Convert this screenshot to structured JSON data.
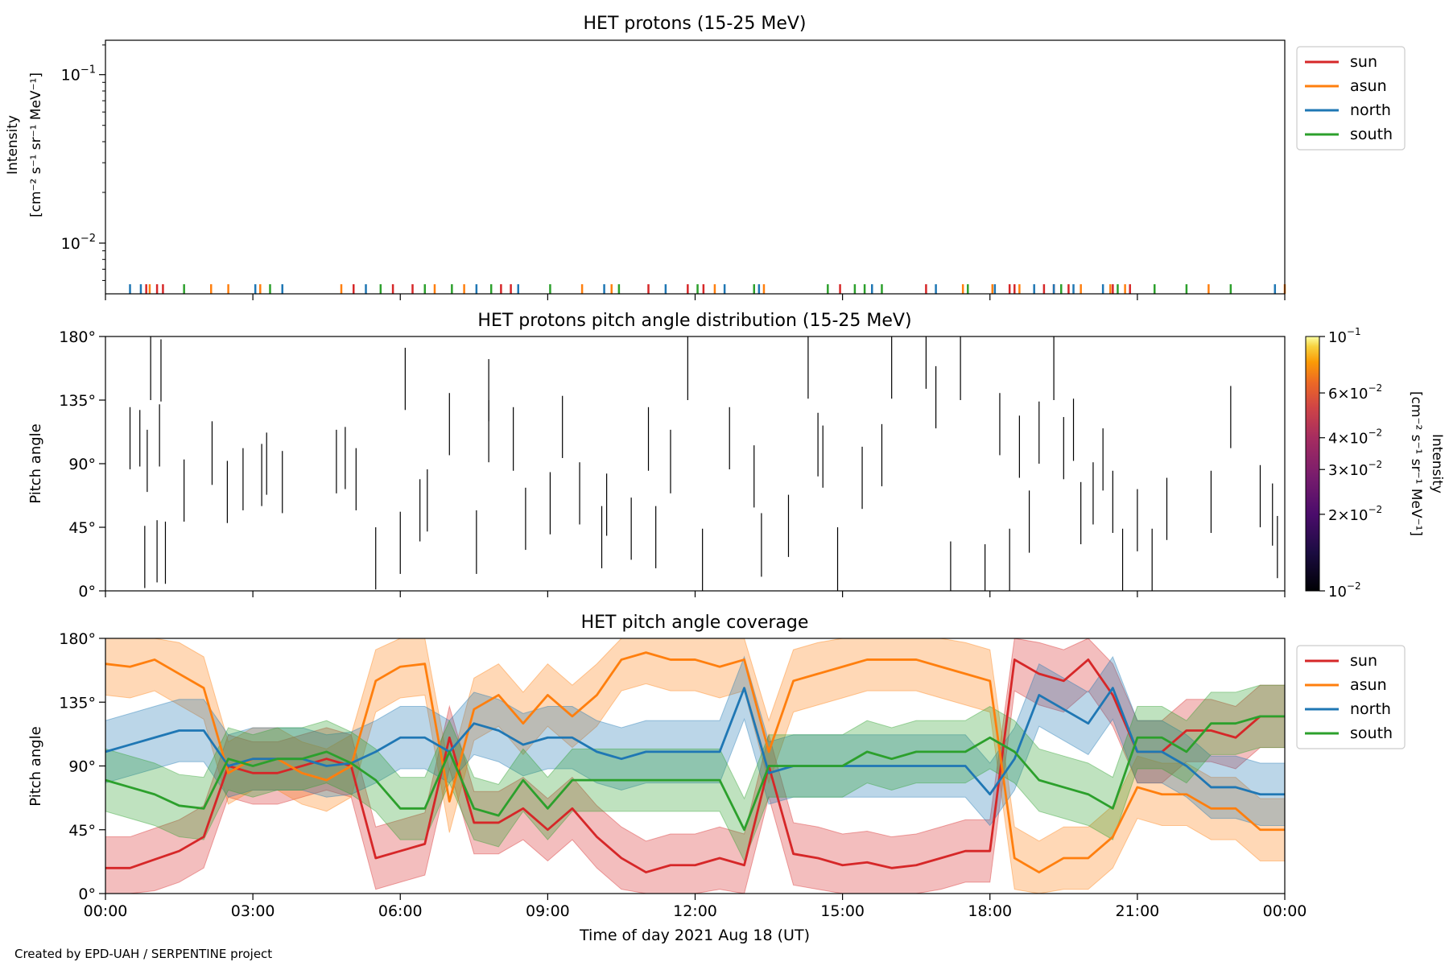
{
  "footer": {
    "credit": "Created by EPD-UAH / SERPENTINE project"
  },
  "colors": {
    "sun": "#d62728",
    "asun": "#ff7f0e",
    "north": "#1f77b4",
    "south": "#2ca02c"
  },
  "chart_data": [
    {
      "type": "line",
      "title": "HET protons (15-25 MeV)",
      "ylabel": "Intensity",
      "ylabel_unit": "[cm⁻² s⁻¹ sr⁻¹ MeV⁻¹]",
      "yscale": "log",
      "ylim": [
        0.005,
        0.16
      ],
      "yticks": [
        {
          "value": 0.1,
          "base": "10",
          "exp": "−1"
        },
        {
          "value": 0.01,
          "base": "10",
          "exp": "−2"
        }
      ],
      "x_unit": "hours",
      "xlim": [
        0,
        24
      ],
      "legend": {
        "placement": "outside-right",
        "entries": [
          "sun",
          "asun",
          "north",
          "south"
        ]
      },
      "series": [
        {
          "name": "sun",
          "color": "#d62728",
          "x": [
            0.83,
            1.05,
            1.17,
            5.05,
            5.85,
            6.25,
            8.05,
            8.25,
            11.05,
            11.85,
            12.17,
            14.95,
            16.7,
            18.4,
            18.5,
            19.1,
            19.3,
            19.6,
            20.5,
            20.85
          ],
          "values": [
            0.0057,
            0.0057,
            0.0057,
            0.0057,
            0.0057,
            0.0057,
            0.0057,
            0.0057,
            0.0057,
            0.0057,
            0.0057,
            0.0057,
            0.0057,
            0.0057,
            0.0057,
            0.0057,
            0.0057,
            0.0057,
            0.0057,
            0.0057
          ]
        },
        {
          "name": "asun",
          "color": "#ff7f0e",
          "x": [
            0.9,
            2.15,
            2.5,
            3.15,
            4.8,
            6.7,
            7.3,
            9.7,
            10.3,
            12.4,
            13.4,
            17.45,
            18.05,
            18.6,
            19.85,
            20.45,
            20.75,
            22.45,
            24.0
          ],
          "values": [
            0.0057,
            0.0057,
            0.0057,
            0.0057,
            0.0057,
            0.0057,
            0.0057,
            0.0057,
            0.0057,
            0.0057,
            0.0057,
            0.0057,
            0.0057,
            0.0057,
            0.0057,
            0.0057,
            0.0057,
            0.0057,
            0.0057
          ]
        },
        {
          "name": "north",
          "color": "#1f77b4",
          "x": [
            0.5,
            0.72,
            3.05,
            3.6,
            5.3,
            7.55,
            8.4,
            10.15,
            11.4,
            12.6,
            13.3,
            15.6,
            16.9,
            18.1,
            18.9,
            19.3,
            19.7,
            20.3,
            23.8
          ],
          "values": [
            0.0057,
            0.0057,
            0.0057,
            0.0057,
            0.0057,
            0.0057,
            0.0057,
            0.0057,
            0.0057,
            0.0057,
            0.0057,
            0.0057,
            0.0057,
            0.0057,
            0.0057,
            0.0057,
            0.0057,
            0.0057,
            0.0057
          ]
        },
        {
          "name": "south",
          "color": "#2ca02c",
          "x": [
            1.6,
            3.35,
            5.6,
            6.5,
            7.05,
            7.85,
            9.05,
            10.45,
            12.05,
            13.2,
            14.7,
            15.25,
            15.45,
            15.8,
            17.55,
            19.45,
            20.6,
            21.35,
            22.0,
            22.9
          ],
          "values": [
            0.0057,
            0.0057,
            0.0057,
            0.0057,
            0.0057,
            0.0057,
            0.0057,
            0.0057,
            0.0057,
            0.0057,
            0.0057,
            0.0057,
            0.0057,
            0.0057,
            0.0057,
            0.0057,
            0.0057,
            0.0057,
            0.0057,
            0.0057
          ]
        }
      ]
    },
    {
      "type": "heatmap",
      "title": "HET protons pitch angle distribution (15-25 MeV)",
      "ylabel": "Pitch angle",
      "ylim": [
        0,
        180
      ],
      "yticks": [
        "0°",
        "45°",
        "90°",
        "135°",
        "180°"
      ],
      "xlim": [
        0,
        24
      ],
      "colorbar": {
        "label": "Intensity",
        "unit": "[cm⁻² s⁻¹ sr⁻¹ MeV⁻¹]",
        "scale": "log",
        "range": [
          0.01,
          0.1
        ],
        "colormap": "inferno",
        "ticks": [
          {
            "value": 0.1,
            "label": "10",
            "exp": "−1"
          },
          {
            "value": 0.06,
            "label": "6×10",
            "exp": "−2"
          },
          {
            "value": 0.04,
            "label": "4×10",
            "exp": "−2"
          },
          {
            "value": 0.03,
            "label": "3×10",
            "exp": "−2"
          },
          {
            "value": 0.02,
            "label": "2×10",
            "exp": "−2"
          },
          {
            "value": 0.01,
            "label": "10",
            "exp": "−2"
          }
        ]
      },
      "segments": [
        {
          "x": 0.5,
          "y0": 86,
          "y1": 130
        },
        {
          "x": 0.7,
          "y0": 88,
          "y1": 128
        },
        {
          "x": 0.8,
          "y0": 2,
          "y1": 46
        },
        {
          "x": 0.85,
          "y0": 70,
          "y1": 114
        },
        {
          "x": 0.92,
          "y0": 135,
          "y1": 180
        },
        {
          "x": 1.05,
          "y0": 6,
          "y1": 50
        },
        {
          "x": 1.1,
          "y0": 88,
          "y1": 132
        },
        {
          "x": 1.13,
          "y0": 134,
          "y1": 178
        },
        {
          "x": 1.22,
          "y0": 5,
          "y1": 49
        },
        {
          "x": 1.6,
          "y0": 49,
          "y1": 93
        },
        {
          "x": 2.17,
          "y0": 75,
          "y1": 120
        },
        {
          "x": 2.48,
          "y0": 48,
          "y1": 92
        },
        {
          "x": 2.8,
          "y0": 57,
          "y1": 101
        },
        {
          "x": 3.18,
          "y0": 60,
          "y1": 104
        },
        {
          "x": 3.28,
          "y0": 68,
          "y1": 112
        },
        {
          "x": 3.6,
          "y0": 55,
          "y1": 99
        },
        {
          "x": 4.7,
          "y0": 69,
          "y1": 114
        },
        {
          "x": 4.88,
          "y0": 72,
          "y1": 116
        },
        {
          "x": 5.1,
          "y0": 57,
          "y1": 101
        },
        {
          "x": 5.5,
          "y0": 1,
          "y1": 45
        },
        {
          "x": 6.0,
          "y0": 12,
          "y1": 56
        },
        {
          "x": 6.1,
          "y0": 128,
          "y1": 172
        },
        {
          "x": 6.4,
          "y0": 35,
          "y1": 79
        },
        {
          "x": 6.55,
          "y0": 42,
          "y1": 86
        },
        {
          "x": 7.0,
          "y0": 96,
          "y1": 140
        },
        {
          "x": 7.55,
          "y0": 12,
          "y1": 57
        },
        {
          "x": 7.8,
          "y0": 120,
          "y1": 164
        },
        {
          "x": 7.8,
          "y0": 91,
          "y1": 135
        },
        {
          "x": 8.3,
          "y0": 85,
          "y1": 130
        },
        {
          "x": 8.55,
          "y0": 29,
          "y1": 73
        },
        {
          "x": 9.05,
          "y0": 40,
          "y1": 84
        },
        {
          "x": 9.3,
          "y0": 94,
          "y1": 138
        },
        {
          "x": 9.65,
          "y0": 47,
          "y1": 91
        },
        {
          "x": 10.1,
          "y0": 16,
          "y1": 60
        },
        {
          "x": 10.2,
          "y0": 39,
          "y1": 83
        },
        {
          "x": 10.7,
          "y0": 22,
          "y1": 66
        },
        {
          "x": 11.05,
          "y0": 85,
          "y1": 130
        },
        {
          "x": 11.2,
          "y0": 16,
          "y1": 60
        },
        {
          "x": 11.5,
          "y0": 69,
          "y1": 114
        },
        {
          "x": 11.85,
          "y0": 135,
          "y1": 180
        },
        {
          "x": 12.15,
          "y0": 0,
          "y1": 44
        },
        {
          "x": 12.7,
          "y0": 86,
          "y1": 130
        },
        {
          "x": 13.2,
          "y0": 59,
          "y1": 103
        },
        {
          "x": 13.35,
          "y0": 10,
          "y1": 55
        },
        {
          "x": 13.9,
          "y0": 24,
          "y1": 68
        },
        {
          "x": 14.3,
          "y0": 136,
          "y1": 180
        },
        {
          "x": 14.5,
          "y0": 81,
          "y1": 126
        },
        {
          "x": 14.6,
          "y0": 73,
          "y1": 117
        },
        {
          "x": 14.9,
          "y0": 0,
          "y1": 45
        },
        {
          "x": 15.4,
          "y0": 58,
          "y1": 102
        },
        {
          "x": 15.8,
          "y0": 74,
          "y1": 118
        },
        {
          "x": 16.0,
          "y0": 136,
          "y1": 180
        },
        {
          "x": 16.7,
          "y0": 143,
          "y1": 180
        },
        {
          "x": 16.9,
          "y0": 115,
          "y1": 159
        },
        {
          "x": 17.2,
          "y0": 0,
          "y1": 35
        },
        {
          "x": 17.4,
          "y0": 135,
          "y1": 180
        },
        {
          "x": 17.9,
          "y0": 0,
          "y1": 33
        },
        {
          "x": 18.2,
          "y0": 96,
          "y1": 140
        },
        {
          "x": 18.4,
          "y0": 0,
          "y1": 44
        },
        {
          "x": 18.6,
          "y0": 80,
          "y1": 124
        },
        {
          "x": 18.8,
          "y0": 27,
          "y1": 71
        },
        {
          "x": 19.0,
          "y0": 90,
          "y1": 134
        },
        {
          "x": 19.3,
          "y0": 135,
          "y1": 180
        },
        {
          "x": 19.5,
          "y0": 79,
          "y1": 123
        },
        {
          "x": 19.7,
          "y0": 92,
          "y1": 136
        },
        {
          "x": 19.85,
          "y0": 33,
          "y1": 77
        },
        {
          "x": 20.1,
          "y0": 47,
          "y1": 91
        },
        {
          "x": 20.3,
          "y0": 71,
          "y1": 115
        },
        {
          "x": 20.5,
          "y0": 41,
          "y1": 85
        },
        {
          "x": 20.7,
          "y0": 0,
          "y1": 44
        },
        {
          "x": 21.0,
          "y0": 28,
          "y1": 72
        },
        {
          "x": 21.3,
          "y0": 0,
          "y1": 44
        },
        {
          "x": 21.6,
          "y0": 36,
          "y1": 80
        },
        {
          "x": 22.5,
          "y0": 41,
          "y1": 85
        },
        {
          "x": 22.9,
          "y0": 101,
          "y1": 145
        },
        {
          "x": 23.5,
          "y0": 45,
          "y1": 89
        },
        {
          "x": 23.75,
          "y0": 32,
          "y1": 76
        },
        {
          "x": 23.85,
          "y0": 9,
          "y1": 53
        }
      ]
    },
    {
      "type": "area",
      "title": "HET pitch angle coverage",
      "ylabel": "Pitch angle",
      "xlabel": "Time of day 2021 Aug 18 (UT)",
      "ylim": [
        0,
        180
      ],
      "yticks": [
        "0°",
        "45°",
        "90°",
        "135°",
        "180°"
      ],
      "xlim": [
        0,
        24
      ],
      "xticks": [
        "00:00",
        "03:00",
        "06:00",
        "09:00",
        "12:00",
        "15:00",
        "18:00",
        "21:00",
        "00:00"
      ],
      "band_halfwidth_deg": 22,
      "legend": {
        "placement": "outside-right",
        "entries": [
          "sun",
          "asun",
          "north",
          "south"
        ]
      },
      "x": [
        0,
        0.5,
        1.0,
        1.5,
        2.0,
        2.5,
        3.0,
        3.5,
        4.0,
        4.5,
        5.0,
        5.5,
        6.0,
        6.5,
        7.0,
        7.5,
        8.0,
        8.5,
        9.0,
        9.5,
        10.0,
        10.5,
        11.0,
        11.5,
        12.0,
        12.5,
        13.0,
        13.5,
        14.0,
        14.5,
        15.0,
        15.5,
        16.0,
        16.5,
        17.0,
        17.5,
        18.0,
        18.5,
        19.0,
        19.5,
        20.0,
        20.5,
        21.0,
        21.5,
        22.0,
        22.5,
        23.0,
        23.5,
        24.0
      ],
      "series": [
        {
          "name": "sun",
          "color": "#d62728",
          "values": [
            18,
            18,
            24,
            30,
            40,
            90,
            85,
            85,
            90,
            95,
            90,
            25,
            30,
            35,
            110,
            50,
            50,
            60,
            45,
            60,
            40,
            25,
            15,
            20,
            20,
            25,
            20,
            90,
            28,
            25,
            20,
            22,
            18,
            20,
            25,
            30,
            30,
            165,
            155,
            150,
            165,
            140,
            100,
            100,
            115,
            115,
            110,
            125,
            125
          ]
        },
        {
          "name": "asun",
          "color": "#ff7f0e",
          "values": [
            162,
            160,
            165,
            155,
            145,
            85,
            95,
            95,
            85,
            80,
            90,
            150,
            160,
            162,
            65,
            130,
            140,
            120,
            140,
            125,
            140,
            165,
            170,
            165,
            165,
            160,
            165,
            100,
            150,
            155,
            160,
            165,
            165,
            165,
            160,
            155,
            150,
            25,
            15,
            25,
            25,
            40,
            75,
            70,
            70,
            60,
            60,
            45,
            45
          ]
        },
        {
          "name": "north",
          "color": "#1f77b4",
          "values": [
            100,
            105,
            110,
            115,
            115,
            90,
            95,
            95,
            95,
            90,
            92,
            100,
            110,
            110,
            100,
            120,
            115,
            105,
            110,
            110,
            100,
            95,
            100,
            100,
            100,
            100,
            145,
            85,
            90,
            90,
            90,
            90,
            90,
            90,
            90,
            90,
            70,
            95,
            140,
            130,
            120,
            145,
            100,
            100,
            90,
            75,
            75,
            70,
            70
          ]
        },
        {
          "name": "south",
          "color": "#2ca02c",
          "values": [
            80,
            75,
            70,
            62,
            60,
            95,
            90,
            95,
            95,
            100,
            92,
            80,
            60,
            60,
            100,
            60,
            55,
            80,
            60,
            80,
            80,
            80,
            80,
            80,
            80,
            80,
            45,
            90,
            90,
            90,
            90,
            100,
            95,
            100,
            100,
            100,
            110,
            100,
            80,
            75,
            70,
            60,
            110,
            110,
            100,
            120,
            120,
            125,
            125
          ]
        }
      ]
    }
  ]
}
